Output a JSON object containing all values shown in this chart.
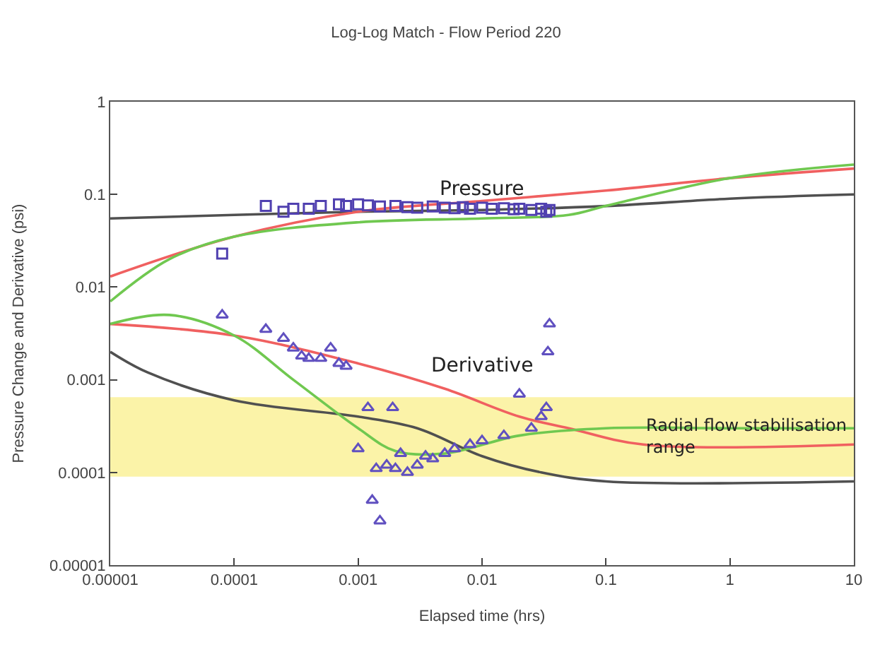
{
  "chart_data": {
    "type": "line",
    "title": "Log-Log Match - Flow Period 220",
    "xlabel": "Elapsed time (hrs)",
    "ylabel": "Pressure Change and Derivative (psi)",
    "log": "xy",
    "grid": false,
    "xlim": [
      1e-05,
      10
    ],
    "xticks": [
      {
        "value": 1e-05,
        "label": "0.00001"
      },
      {
        "value": 0.0001,
        "label": "0.0001"
      },
      {
        "value": 0.001,
        "label": "0.001"
      },
      {
        "value": 0.01,
        "label": "0.01"
      },
      {
        "value": 0.1,
        "label": "0.1"
      },
      1,
      10
    ],
    "ylim": [
      1e-05,
      1
    ],
    "yticks": [
      {
        "value": 1e-05,
        "label": "0.00001"
      },
      {
        "value": 0.0001,
        "label": "0.0001"
      },
      {
        "value": 0.001,
        "label": "0.001"
      },
      {
        "value": 0.01,
        "label": "0.01"
      },
      {
        "value": 0.1,
        "label": "0.1"
      },
      1
    ],
    "bands": [
      {
        "axis": "y",
        "from": 9e-05,
        "to": 0.00065,
        "label": "Radial flow stabilisation range",
        "color": "#fbf3a8"
      }
    ],
    "annotations": [
      "Pressure",
      "Derivative"
    ],
    "series": [
      {
        "color": "#505050",
        "x": [
          1e-05,
          0.0001,
          0.001,
          0.01,
          0.1,
          1,
          10
        ],
        "values": [
          0.055,
          0.06,
          0.065,
          0.068,
          0.075,
          0.09,
          0.1
        ]
      },
      {
        "color": "#f06060",
        "x": [
          1e-05,
          0.0001,
          0.001,
          0.01,
          0.1,
          1,
          10
        ],
        "values": [
          0.013,
          0.035,
          0.065,
          0.085,
          0.11,
          0.15,
          0.19
        ]
      },
      {
        "color": "#70c850",
        "x": [
          1e-05,
          3e-05,
          0.0001,
          0.001,
          0.01,
          0.05,
          0.1,
          1,
          10
        ],
        "values": [
          0.007,
          0.02,
          0.035,
          0.05,
          0.055,
          0.06,
          0.075,
          0.15,
          0.21
        ]
      },
      {
        "color": "#505050",
        "x": [
          1e-05,
          2e-05,
          0.0001,
          0.001,
          0.003,
          0.01,
          0.03,
          0.1,
          10
        ],
        "values": [
          0.002,
          0.0012,
          0.0006,
          0.0004,
          0.0003,
          0.00015,
          0.0001,
          8e-05,
          8e-05
        ]
      },
      {
        "color": "#f06060",
        "x": [
          1e-05,
          0.0001,
          0.001,
          0.005,
          0.02,
          0.05,
          0.2,
          10
        ],
        "values": [
          0.004,
          0.003,
          0.0015,
          0.0008,
          0.0004,
          0.0003,
          0.0002,
          0.0002
        ]
      },
      {
        "color": "#70c850",
        "x": [
          1e-05,
          3e-05,
          0.0001,
          0.0003,
          0.001,
          0.002,
          0.005,
          0.02,
          0.1,
          1,
          10
        ],
        "values": [
          0.004,
          0.005,
          0.003,
          0.001,
          0.0003,
          0.00017,
          0.00016,
          0.00025,
          0.0003,
          0.0003,
          0.0003
        ]
      },
      {
        "type": "scatter",
        "marker": "square",
        "color": "#5040b0",
        "x": [
          8e-05,
          0.00018,
          0.00025,
          0.0003,
          0.0004,
          0.0005,
          0.0007,
          0.0008,
          0.001,
          0.0012,
          0.0015,
          0.002,
          0.0025,
          0.003,
          0.004,
          0.005,
          0.006,
          0.007,
          0.008,
          0.01,
          0.012,
          0.015,
          0.018,
          0.02,
          0.025,
          0.03,
          0.033,
          0.035
        ],
        "values": [
          0.023,
          0.075,
          0.065,
          0.07,
          0.07,
          0.075,
          0.078,
          0.075,
          0.078,
          0.076,
          0.074,
          0.075,
          0.073,
          0.072,
          0.074,
          0.072,
          0.071,
          0.073,
          0.07,
          0.072,
          0.07,
          0.071,
          0.069,
          0.07,
          0.068,
          0.07,
          0.065,
          0.068
        ]
      },
      {
        "type": "scatter",
        "marker": "triangle",
        "color": "#6050c0",
        "x": [
          8e-05,
          0.00018,
          0.00025,
          0.0003,
          0.00035,
          0.0004,
          0.0005,
          0.0006,
          0.0007,
          0.0008,
          0.001,
          0.0012,
          0.0013,
          0.0014,
          0.0015,
          0.0017,
          0.0019,
          0.002,
          0.0022,
          0.0025,
          0.003,
          0.0035,
          0.004,
          0.005,
          0.006,
          0.008,
          0.01,
          0.015,
          0.02,
          0.025,
          0.03,
          0.033,
          0.034,
          0.035
        ],
        "values": [
          0.005,
          0.0035,
          0.0028,
          0.0022,
          0.0018,
          0.0017,
          0.0017,
          0.0022,
          0.0015,
          0.0014,
          0.00018,
          0.0005,
          5e-05,
          0.00011,
          3e-05,
          0.00012,
          0.0005,
          0.00011,
          0.00016,
          0.0001,
          0.00012,
          0.00015,
          0.00014,
          0.00016,
          0.00018,
          0.0002,
          0.00022,
          0.00025,
          0.0007,
          0.0003,
          0.0004,
          0.0005,
          0.002,
          0.004
        ]
      }
    ]
  }
}
